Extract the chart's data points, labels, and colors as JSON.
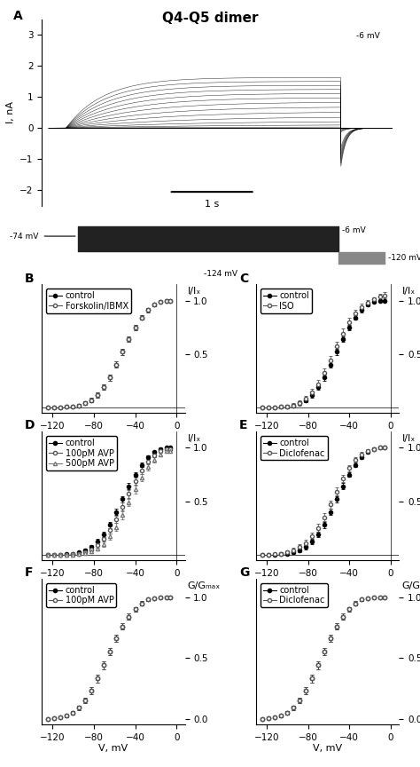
{
  "title": "Q4-Q5 dimer",
  "title_fontsize": 11,
  "title_fontweight": "bold",
  "panel_label_fontsize": 10,
  "panel_label_fontweight": "bold",
  "axis_fontsize": 8,
  "tick_fontsize": 7.5,
  "legend_fontsize": 7,
  "xlim": [
    -130,
    8
  ],
  "xticks": [
    -120,
    -80,
    -40,
    0
  ],
  "ylim_ic": [
    -0.05,
    1.15
  ],
  "yticks_ic": [
    0.5,
    1.0
  ],
  "ylim_gg": [
    -0.05,
    1.15
  ],
  "yticks_gg": [
    0.0,
    0.5,
    1.0
  ],
  "ylabel_ic": "I/Iₓ",
  "ylabel_gg": "G/Gₘₐₓ",
  "xlabel": "V, mV",
  "background_color": "#ffffff",
  "markersize": 3.0,
  "linewidth": 0.8,
  "errorbar_capsize": 1.5,
  "errorbar_linewidth": 0.6,
  "panels": {
    "B": {
      "label": "B",
      "legend": [
        "control",
        "Forskolin/IBMX"
      ],
      "series": [
        {
          "x": [
            -124,
            -118,
            -112,
            -106,
            -100,
            -94,
            -88,
            -82,
            -76,
            -70,
            -64,
            -58,
            -52,
            -46,
            -40,
            -34,
            -28,
            -22,
            -16,
            -10,
            -6
          ],
          "y": [
            0.0,
            0.0,
            0.0,
            0.005,
            0.01,
            0.02,
            0.04,
            0.07,
            0.12,
            0.19,
            0.28,
            0.4,
            0.52,
            0.64,
            0.75,
            0.84,
            0.91,
            0.96,
            0.99,
            1.0,
            1.0
          ],
          "yerr": [
            0.004,
            0.004,
            0.004,
            0.006,
            0.008,
            0.012,
            0.016,
            0.02,
            0.025,
            0.028,
            0.028,
            0.028,
            0.028,
            0.028,
            0.024,
            0.022,
            0.018,
            0.014,
            0.01,
            0.008,
            0.008
          ],
          "marker": "o",
          "filled": true,
          "color": "#000000"
        },
        {
          "x": [
            -124,
            -118,
            -112,
            -106,
            -100,
            -94,
            -88,
            -82,
            -76,
            -70,
            -64,
            -58,
            -52,
            -46,
            -40,
            -34,
            -28,
            -22,
            -16,
            -10,
            -6
          ],
          "y": [
            0.0,
            0.0,
            0.0,
            0.005,
            0.01,
            0.02,
            0.04,
            0.07,
            0.12,
            0.19,
            0.28,
            0.4,
            0.52,
            0.64,
            0.75,
            0.84,
            0.91,
            0.96,
            0.99,
            1.0,
            1.0
          ],
          "yerr": [
            0.004,
            0.004,
            0.004,
            0.006,
            0.008,
            0.012,
            0.016,
            0.02,
            0.025,
            0.028,
            0.028,
            0.028,
            0.028,
            0.028,
            0.024,
            0.022,
            0.018,
            0.014,
            0.01,
            0.008,
            0.008
          ],
          "marker": "o",
          "filled": false,
          "color": "#555555"
        }
      ]
    },
    "C": {
      "label": "C",
      "legend": [
        "control",
        "ISO"
      ],
      "series": [
        {
          "x": [
            -124,
            -118,
            -112,
            -106,
            -100,
            -94,
            -88,
            -82,
            -76,
            -70,
            -64,
            -58,
            -52,
            -46,
            -40,
            -34,
            -28,
            -22,
            -16,
            -10,
            -6
          ],
          "y": [
            0.0,
            0.0,
            0.0,
            0.005,
            0.01,
            0.02,
            0.04,
            0.07,
            0.12,
            0.19,
            0.28,
            0.4,
            0.52,
            0.64,
            0.75,
            0.84,
            0.91,
            0.96,
            0.99,
            1.0,
            1.0
          ],
          "yerr": [
            0.004,
            0.004,
            0.004,
            0.006,
            0.008,
            0.012,
            0.016,
            0.02,
            0.025,
            0.028,
            0.028,
            0.028,
            0.028,
            0.028,
            0.024,
            0.022,
            0.018,
            0.014,
            0.01,
            0.008,
            0.008
          ],
          "marker": "o",
          "filled": true,
          "color": "#000000"
        },
        {
          "x": [
            -124,
            -118,
            -112,
            -106,
            -100,
            -94,
            -88,
            -82,
            -76,
            -70,
            -64,
            -58,
            -52,
            -46,
            -40,
            -34,
            -28,
            -22,
            -16,
            -10,
            -6
          ],
          "y": [
            0.0,
            0.0,
            0.0,
            0.005,
            0.01,
            0.02,
            0.04,
            0.08,
            0.14,
            0.22,
            0.32,
            0.44,
            0.57,
            0.69,
            0.8,
            0.88,
            0.94,
            0.98,
            1.01,
            1.04,
            1.05
          ],
          "yerr": [
            0.008,
            0.008,
            0.008,
            0.012,
            0.016,
            0.02,
            0.025,
            0.03,
            0.035,
            0.04,
            0.045,
            0.045,
            0.045,
            0.045,
            0.04,
            0.035,
            0.03,
            0.025,
            0.022,
            0.025,
            0.03
          ],
          "marker": "o",
          "filled": false,
          "color": "#555555"
        }
      ]
    },
    "D": {
      "label": "D",
      "legend": [
        "control",
        "100pM AVP",
        "500pM AVP"
      ],
      "series": [
        {
          "x": [
            -124,
            -118,
            -112,
            -106,
            -100,
            -94,
            -88,
            -82,
            -76,
            -70,
            -64,
            -58,
            -52,
            -46,
            -40,
            -34,
            -28,
            -22,
            -16,
            -10,
            -6
          ],
          "y": [
            0.0,
            0.0,
            0.0,
            0.005,
            0.01,
            0.02,
            0.04,
            0.07,
            0.12,
            0.19,
            0.28,
            0.4,
            0.52,
            0.64,
            0.75,
            0.84,
            0.91,
            0.96,
            0.99,
            1.0,
            1.0
          ],
          "yerr": [
            0.004,
            0.004,
            0.004,
            0.006,
            0.008,
            0.012,
            0.016,
            0.02,
            0.025,
            0.028,
            0.028,
            0.028,
            0.028,
            0.028,
            0.024,
            0.022,
            0.018,
            0.014,
            0.01,
            0.008,
            0.008
          ],
          "marker": "o",
          "filled": true,
          "color": "#000000"
        },
        {
          "x": [
            -124,
            -118,
            -112,
            -106,
            -100,
            -94,
            -88,
            -82,
            -76,
            -70,
            -64,
            -58,
            -52,
            -46,
            -40,
            -34,
            -28,
            -22,
            -16,
            -10,
            -6
          ],
          "y": [
            0.0,
            0.0,
            0.0,
            0.0,
            0.005,
            0.01,
            0.025,
            0.05,
            0.09,
            0.15,
            0.23,
            0.33,
            0.45,
            0.57,
            0.69,
            0.79,
            0.87,
            0.93,
            0.97,
            0.99,
            0.99
          ],
          "yerr": [
            0.004,
            0.004,
            0.004,
            0.006,
            0.008,
            0.012,
            0.016,
            0.02,
            0.025,
            0.028,
            0.032,
            0.035,
            0.036,
            0.036,
            0.035,
            0.032,
            0.028,
            0.022,
            0.016,
            0.012,
            0.01
          ],
          "marker": "o",
          "filled": false,
          "color": "#555555"
        },
        {
          "x": [
            -124,
            -118,
            -112,
            -106,
            -100,
            -94,
            -88,
            -82,
            -76,
            -70,
            -64,
            -58,
            -52,
            -46,
            -40,
            -34,
            -28,
            -22,
            -16,
            -10,
            -6
          ],
          "y": [
            0.0,
            0.0,
            0.0,
            0.0,
            0.0,
            0.005,
            0.015,
            0.03,
            0.06,
            0.1,
            0.17,
            0.26,
            0.37,
            0.49,
            0.61,
            0.72,
            0.82,
            0.89,
            0.94,
            0.97,
            0.97
          ],
          "yerr": [
            0.004,
            0.004,
            0.004,
            0.004,
            0.006,
            0.008,
            0.012,
            0.018,
            0.022,
            0.026,
            0.03,
            0.035,
            0.036,
            0.036,
            0.036,
            0.034,
            0.03,
            0.026,
            0.02,
            0.016,
            0.014
          ],
          "marker": "^",
          "filled": false,
          "color": "#777777"
        }
      ]
    },
    "E": {
      "label": "E",
      "legend": [
        "control",
        "Diclofenac"
      ],
      "series": [
        {
          "x": [
            -124,
            -118,
            -112,
            -106,
            -100,
            -94,
            -88,
            -82,
            -76,
            -70,
            -64,
            -58,
            -52,
            -46,
            -40,
            -34,
            -28,
            -22,
            -16,
            -10,
            -6
          ],
          "y": [
            0.0,
            0.0,
            0.0,
            0.005,
            0.01,
            0.02,
            0.04,
            0.07,
            0.12,
            0.19,
            0.28,
            0.4,
            0.52,
            0.64,
            0.75,
            0.84,
            0.91,
            0.96,
            0.99,
            1.0,
            1.0
          ],
          "yerr": [
            0.004,
            0.004,
            0.004,
            0.006,
            0.008,
            0.012,
            0.016,
            0.02,
            0.025,
            0.028,
            0.028,
            0.028,
            0.028,
            0.028,
            0.024,
            0.022,
            0.018,
            0.014,
            0.01,
            0.008,
            0.008
          ],
          "marker": "o",
          "filled": true,
          "color": "#000000"
        },
        {
          "x": [
            -124,
            -118,
            -112,
            -106,
            -100,
            -94,
            -88,
            -82,
            -76,
            -70,
            -64,
            -58,
            -52,
            -46,
            -40,
            -34,
            -28,
            -22,
            -16,
            -10,
            -6
          ],
          "y": [
            0.0,
            0.0,
            0.005,
            0.01,
            0.02,
            0.04,
            0.07,
            0.11,
            0.17,
            0.25,
            0.35,
            0.47,
            0.59,
            0.71,
            0.81,
            0.89,
            0.94,
            0.97,
            0.99,
            1.0,
            1.0
          ],
          "yerr": [
            0.008,
            0.008,
            0.01,
            0.014,
            0.018,
            0.022,
            0.026,
            0.03,
            0.034,
            0.036,
            0.036,
            0.036,
            0.036,
            0.034,
            0.03,
            0.026,
            0.022,
            0.018,
            0.012,
            0.01,
            0.008
          ],
          "marker": "o",
          "filled": false,
          "color": "#555555"
        }
      ]
    },
    "F": {
      "label": "F",
      "legend": [
        "control",
        "100pM AVP"
      ],
      "series": [
        {
          "x": [
            -124,
            -118,
            -112,
            -106,
            -100,
            -94,
            -88,
            -82,
            -76,
            -70,
            -64,
            -58,
            -52,
            -46,
            -40,
            -34,
            -28,
            -22,
            -16,
            -10,
            -6
          ],
          "y": [
            0.0,
            0.005,
            0.01,
            0.025,
            0.05,
            0.09,
            0.15,
            0.23,
            0.33,
            0.44,
            0.55,
            0.66,
            0.76,
            0.84,
            0.9,
            0.95,
            0.98,
            0.99,
            1.0,
            1.0,
            1.0
          ],
          "yerr": [
            0.004,
            0.006,
            0.008,
            0.012,
            0.016,
            0.02,
            0.024,
            0.028,
            0.03,
            0.03,
            0.03,
            0.03,
            0.026,
            0.024,
            0.02,
            0.016,
            0.012,
            0.008,
            0.006,
            0.005,
            0.005
          ],
          "marker": "o",
          "filled": true,
          "color": "#000000"
        },
        {
          "x": [
            -124,
            -118,
            -112,
            -106,
            -100,
            -94,
            -88,
            -82,
            -76,
            -70,
            -64,
            -58,
            -52,
            -46,
            -40,
            -34,
            -28,
            -22,
            -16,
            -10,
            -6
          ],
          "y": [
            0.0,
            0.005,
            0.01,
            0.025,
            0.05,
            0.09,
            0.15,
            0.23,
            0.33,
            0.44,
            0.55,
            0.66,
            0.76,
            0.84,
            0.9,
            0.95,
            0.98,
            0.99,
            1.0,
            1.0,
            1.0
          ],
          "yerr": [
            0.004,
            0.006,
            0.008,
            0.012,
            0.016,
            0.02,
            0.024,
            0.028,
            0.03,
            0.03,
            0.03,
            0.03,
            0.026,
            0.024,
            0.02,
            0.016,
            0.012,
            0.008,
            0.006,
            0.005,
            0.005
          ],
          "marker": "o",
          "filled": false,
          "color": "#555555"
        }
      ]
    },
    "G": {
      "label": "G",
      "legend": [
        "control",
        "Diclofenac"
      ],
      "series": [
        {
          "x": [
            -124,
            -118,
            -112,
            -106,
            -100,
            -94,
            -88,
            -82,
            -76,
            -70,
            -64,
            -58,
            -52,
            -46,
            -40,
            -34,
            -28,
            -22,
            -16,
            -10,
            -6
          ],
          "y": [
            0.0,
            0.005,
            0.01,
            0.025,
            0.05,
            0.09,
            0.15,
            0.23,
            0.33,
            0.44,
            0.55,
            0.66,
            0.76,
            0.84,
            0.9,
            0.95,
            0.98,
            0.99,
            1.0,
            1.0,
            1.0
          ],
          "yerr": [
            0.004,
            0.006,
            0.008,
            0.012,
            0.016,
            0.02,
            0.024,
            0.028,
            0.03,
            0.03,
            0.03,
            0.03,
            0.026,
            0.024,
            0.02,
            0.016,
            0.012,
            0.008,
            0.006,
            0.005,
            0.005
          ],
          "marker": "o",
          "filled": true,
          "color": "#000000"
        },
        {
          "x": [
            -124,
            -118,
            -112,
            -106,
            -100,
            -94,
            -88,
            -82,
            -76,
            -70,
            -64,
            -58,
            -52,
            -46,
            -40,
            -34,
            -28,
            -22,
            -16,
            -10,
            -6
          ],
          "y": [
            0.0,
            0.005,
            0.01,
            0.025,
            0.05,
            0.09,
            0.15,
            0.23,
            0.33,
            0.44,
            0.55,
            0.66,
            0.76,
            0.84,
            0.9,
            0.95,
            0.98,
            0.99,
            1.0,
            1.0,
            1.0
          ],
          "yerr": [
            0.004,
            0.006,
            0.008,
            0.012,
            0.016,
            0.02,
            0.024,
            0.028,
            0.03,
            0.03,
            0.03,
            0.03,
            0.026,
            0.024,
            0.02,
            0.016,
            0.012,
            0.008,
            0.006,
            0.005,
            0.005
          ],
          "marker": "o",
          "filled": false,
          "color": "#555555"
        }
      ]
    }
  }
}
